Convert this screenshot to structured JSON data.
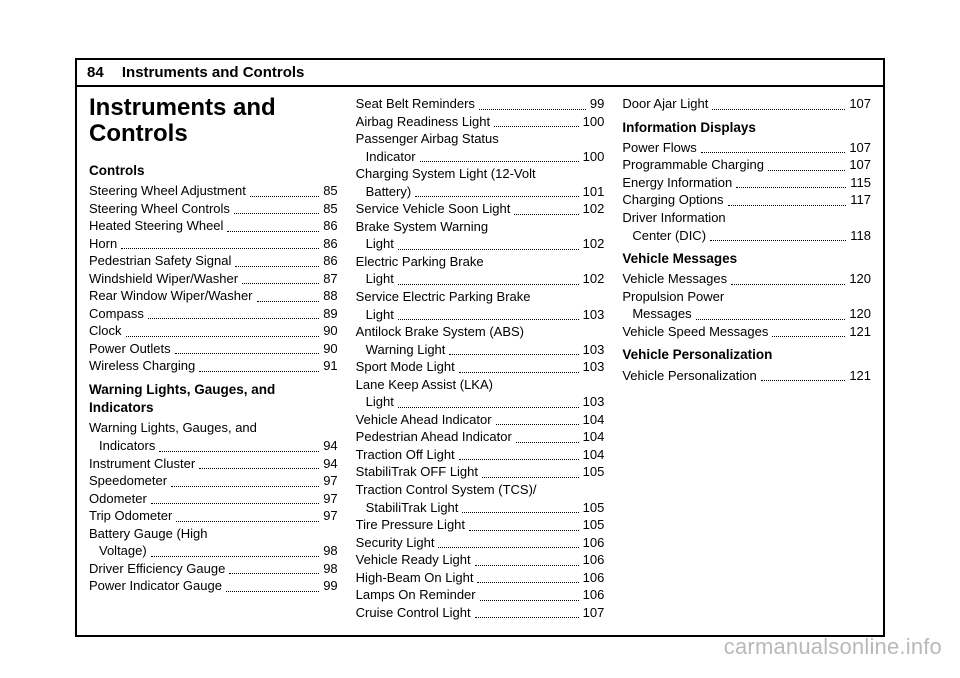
{
  "page_number": "84",
  "section_name": "Instruments and Controls",
  "chapter_title": "Instruments and\nControls",
  "watermark": "carmanualsonline.info",
  "col1": {
    "groups": [
      {
        "title": "Controls",
        "items": [
          {
            "label": "Steering Wheel Adjustment",
            "page": "85"
          },
          {
            "label": "Steering Wheel Controls",
            "page": "85"
          },
          {
            "label": "Heated Steering Wheel",
            "page": "86"
          },
          {
            "label": "Horn",
            "page": "86"
          },
          {
            "label": "Pedestrian Safety Signal",
            "page": "86"
          },
          {
            "label": "Windshield Wiper/Washer",
            "page": "87"
          },
          {
            "label": "Rear Window Wiper/Washer",
            "page": "88"
          },
          {
            "label": "Compass",
            "page": "89"
          },
          {
            "label": "Clock",
            "page": "90"
          },
          {
            "label": "Power Outlets",
            "page": "90"
          },
          {
            "label": "Wireless Charging",
            "page": "91"
          }
        ]
      },
      {
        "title": "Warning Lights, Gauges, and Indicators",
        "items": [
          {
            "label": "Warning Lights, Gauges, and",
            "cont": "Indicators",
            "page": "94"
          },
          {
            "label": "Instrument Cluster",
            "page": "94"
          },
          {
            "label": "Speedometer",
            "page": "97"
          },
          {
            "label": "Odometer",
            "page": "97"
          },
          {
            "label": "Trip Odometer",
            "page": "97"
          },
          {
            "label": "Battery Gauge (High",
            "cont": "Voltage)",
            "page": "98"
          },
          {
            "label": "Driver Efficiency Gauge",
            "page": "98"
          },
          {
            "label": "Power Indicator Gauge",
            "page": "99"
          }
        ]
      }
    ]
  },
  "col2": {
    "items": [
      {
        "label": "Seat Belt Reminders",
        "page": "99"
      },
      {
        "label": "Airbag Readiness Light",
        "page": "100"
      },
      {
        "label": "Passenger Airbag Status",
        "cont": "Indicator",
        "page": "100"
      },
      {
        "label": "Charging System Light (12-Volt",
        "cont": "Battery)",
        "page": "101"
      },
      {
        "label": "Service Vehicle Soon Light",
        "page": "102"
      },
      {
        "label": "Brake System Warning",
        "cont": "Light",
        "page": "102"
      },
      {
        "label": "Electric Parking Brake",
        "cont": "Light",
        "page": "102"
      },
      {
        "label": "Service Electric Parking Brake",
        "cont": "Light",
        "page": "103"
      },
      {
        "label": "Antilock Brake System (ABS)",
        "cont": "Warning Light",
        "page": "103"
      },
      {
        "label": "Sport Mode Light",
        "page": "103"
      },
      {
        "label": "Lane Keep Assist (LKA)",
        "cont": "Light",
        "page": "103"
      },
      {
        "label": "Vehicle Ahead Indicator",
        "page": "104"
      },
      {
        "label": "Pedestrian Ahead Indicator",
        "page": "104"
      },
      {
        "label": "Traction Off Light",
        "page": "104"
      },
      {
        "label": "StabiliTrak OFF Light",
        "page": "105"
      },
      {
        "label": "Traction Control System (TCS)/",
        "cont": "StabiliTrak Light",
        "page": "105"
      },
      {
        "label": "Tire Pressure Light",
        "page": "105"
      },
      {
        "label": "Security Light",
        "page": "106"
      },
      {
        "label": "Vehicle Ready Light",
        "page": "106"
      },
      {
        "label": "High-Beam On Light",
        "page": "106"
      },
      {
        "label": "Lamps On Reminder",
        "page": "106"
      },
      {
        "label": "Cruise Control Light",
        "page": "107"
      }
    ]
  },
  "col3": {
    "top_items": [
      {
        "label": "Door Ajar Light",
        "page": "107"
      }
    ],
    "groups": [
      {
        "title": "Information Displays",
        "items": [
          {
            "label": "Power Flows",
            "page": "107"
          },
          {
            "label": "Programmable Charging",
            "page": "107"
          },
          {
            "label": "Energy Information",
            "page": "115"
          },
          {
            "label": "Charging Options",
            "page": "117"
          },
          {
            "label": "Driver Information",
            "cont": "Center (DIC)",
            "page": "118"
          }
        ]
      },
      {
        "title": "Vehicle Messages",
        "items": [
          {
            "label": "Vehicle Messages",
            "page": "120"
          },
          {
            "label": "Propulsion Power",
            "cont": "Messages",
            "page": "120"
          },
          {
            "label": "Vehicle Speed Messages",
            "page": "121"
          }
        ]
      },
      {
        "title": "Vehicle Personalization",
        "items": [
          {
            "label": "Vehicle Personalization",
            "page": "121"
          }
        ]
      }
    ]
  }
}
